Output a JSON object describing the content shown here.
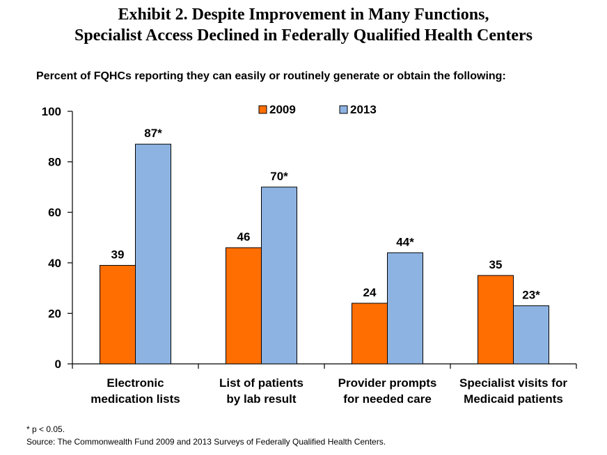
{
  "title_line1": "Exhibit 2. Despite Improvement in Many Functions,",
  "title_line2": "Specialist Access Declined in Federally Qualified Health Centers",
  "subtitle": "Percent of FQHCs reporting they can easily or routinely generate or obtain the following:",
  "footnote": "* p < 0.05.",
  "source": "Source:  The Commonwealth Fund 2009 and 2013 Surveys of Federally Qualified Health Centers.",
  "chart_data": {
    "type": "bar",
    "categories": [
      [
        "Electronic",
        "medication lists"
      ],
      [
        "List of patients",
        "by lab result"
      ],
      [
        "Provider prompts",
        "for needed care"
      ],
      [
        "Specialist visits for",
        "Medicaid patients"
      ]
    ],
    "series": [
      {
        "name": "2009",
        "values": [
          39,
          46,
          24,
          35
        ],
        "labels": [
          "39",
          "46",
          "24",
          "35"
        ],
        "color": "#FF6E00"
      },
      {
        "name": "2013",
        "values": [
          87,
          70,
          44,
          23
        ],
        "labels": [
          "87*",
          "70*",
          "44*",
          "23*"
        ],
        "color": "#8DB3E2"
      }
    ],
    "yticks": [
      "0",
      "20",
      "40",
      "60",
      "80",
      "100"
    ],
    "ylim": [
      0,
      100
    ],
    "grid": false,
    "legend": "top-center"
  }
}
